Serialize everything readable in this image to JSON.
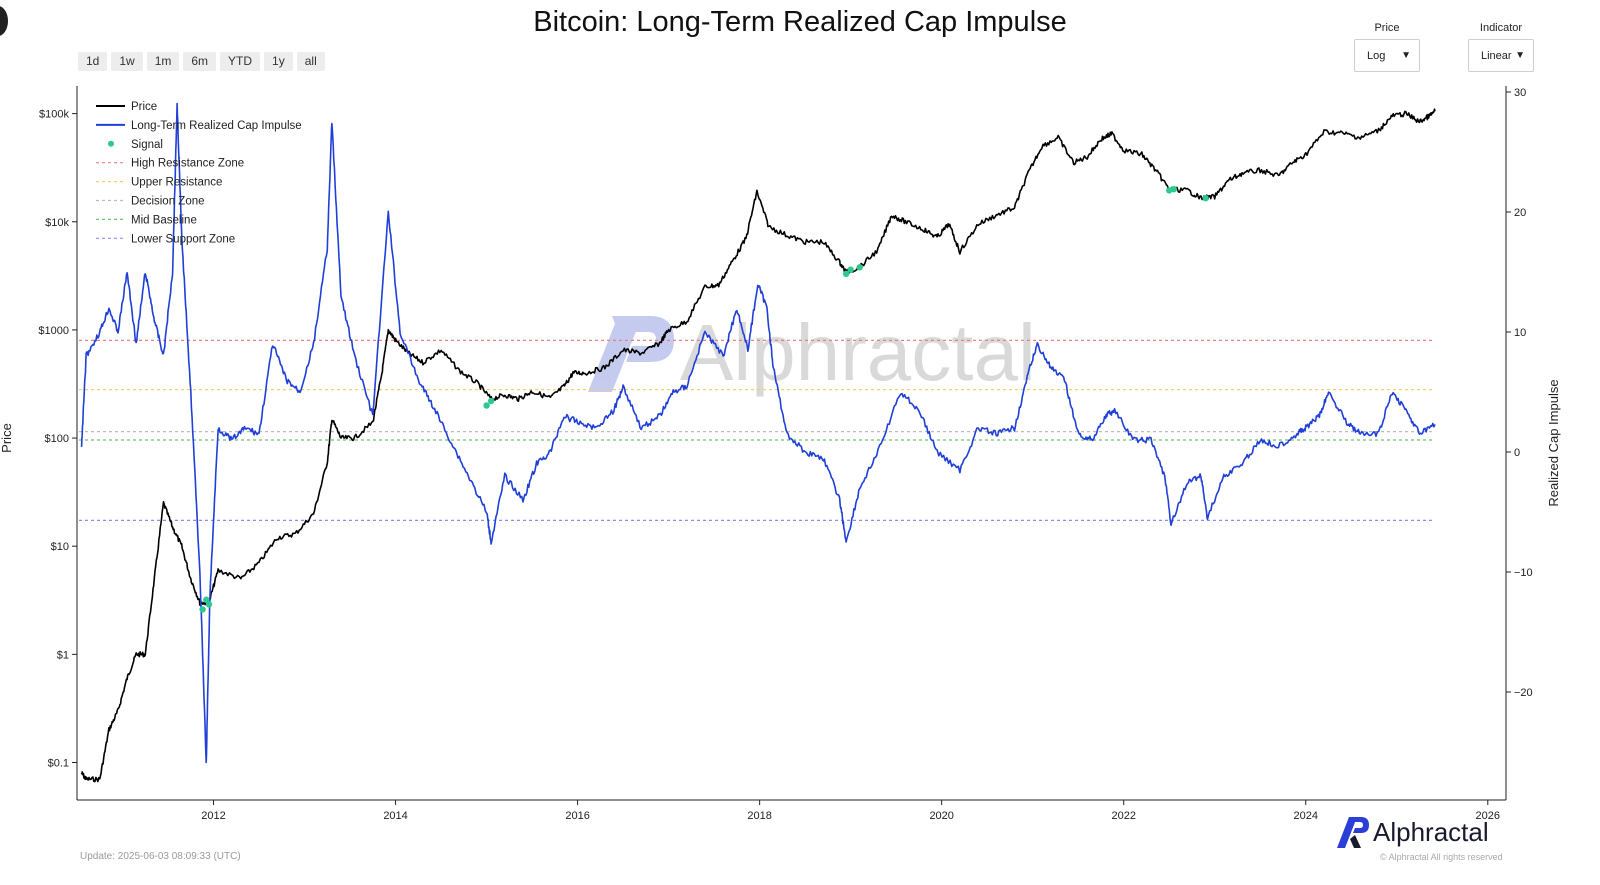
{
  "title": "Bitcoin: Long-Term Realized Cap Impulse",
  "range_buttons": [
    "1d",
    "1w",
    "1m",
    "6m",
    "YTD",
    "1y",
    "all"
  ],
  "price_control": {
    "label": "Price",
    "value": "Log"
  },
  "indicator_control": {
    "label": "Indicator",
    "value": "Linear"
  },
  "update_text": "Update: 2025-06-03 08:09:33 (UTC)",
  "brand": {
    "name": "Alphractal",
    "copyright": "© Alphractal All rights reserved"
  },
  "colors": {
    "price": "#000000",
    "impulse": "#1f3fd8",
    "signal": "#2ec98e",
    "high_resistance": "#f08080",
    "upper_resistance": "#f2d06b",
    "decision": "#bcbcbc",
    "mid_baseline": "#6cc46c",
    "lower_support": "#8e8ef0"
  },
  "chart_data": {
    "type": "line",
    "title": "Bitcoin: Long-Term Realized Cap Impulse",
    "xlabel": "",
    "ylabel_left": "Price",
    "ylabel_right": "Realized Cap Impulse",
    "x_ticks": [
      "2012",
      "2014",
      "2016",
      "2018",
      "2020",
      "2022",
      "2024",
      "2026"
    ],
    "xlim": [
      2010.5,
      2026.2
    ],
    "y_left_ticks": [
      "$0.1",
      "$1",
      "$10",
      "$100",
      "$1000",
      "$10k",
      "$100k"
    ],
    "y_left_scale": "log",
    "y_left_range": [
      0.045,
      180000
    ],
    "y_right_ticks": [
      "−20",
      "−10",
      "0",
      "10",
      "20",
      "30"
    ],
    "y_right_range": [
      -29,
      30.5
    ],
    "grid": false,
    "legend_position": "top-left",
    "legend": [
      "Price",
      "Long-Term Realized Cap Impulse",
      "Signal",
      "High Resistance Zone",
      "Upper Resistance",
      "Decision Zone",
      "Mid Baseline",
      "Lower Support Zone"
    ],
    "zones": [
      {
        "name": "High Resistance Zone",
        "value": 9.3
      },
      {
        "name": "Upper Resistance",
        "value": 5.2
      },
      {
        "name": "Decision Zone",
        "value": 1.7
      },
      {
        "name": "Mid Baseline",
        "value": 1.0
      },
      {
        "name": "Lower Support Zone",
        "value": -5.7
      }
    ],
    "series": [
      {
        "name": "Price",
        "axis": "left",
        "points": [
          [
            2010.55,
            0.08
          ],
          [
            2010.6,
            0.07
          ],
          [
            2010.75,
            0.07
          ],
          [
            2010.85,
            0.2
          ],
          [
            2010.95,
            0.3
          ],
          [
            2011.05,
            0.6
          ],
          [
            2011.15,
            1
          ],
          [
            2011.25,
            1
          ],
          [
            2011.35,
            5
          ],
          [
            2011.45,
            25
          ],
          [
            2011.55,
            15
          ],
          [
            2011.65,
            10
          ],
          [
            2011.75,
            5
          ],
          [
            2011.85,
            3
          ],
          [
            2011.95,
            3
          ],
          [
            2012.05,
            6
          ],
          [
            2012.3,
            5
          ],
          [
            2012.5,
            7
          ],
          [
            2012.7,
            12
          ],
          [
            2012.9,
            13
          ],
          [
            2013.1,
            20
          ],
          [
            2013.25,
            60
          ],
          [
            2013.3,
            150
          ],
          [
            2013.4,
            100
          ],
          [
            2013.55,
            100
          ],
          [
            2013.75,
            140
          ],
          [
            2013.85,
            400
          ],
          [
            2013.92,
            1000
          ],
          [
            2014.0,
            800
          ],
          [
            2014.15,
            600
          ],
          [
            2014.3,
            500
          ],
          [
            2014.5,
            650
          ],
          [
            2014.7,
            420
          ],
          [
            2014.9,
            320
          ],
          [
            2015.05,
            230
          ],
          [
            2015.2,
            250
          ],
          [
            2015.35,
            230
          ],
          [
            2015.5,
            270
          ],
          [
            2015.7,
            235
          ],
          [
            2015.85,
            300
          ],
          [
            2015.95,
            400
          ],
          [
            2016.1,
            400
          ],
          [
            2016.3,
            450
          ],
          [
            2016.5,
            650
          ],
          [
            2016.7,
            610
          ],
          [
            2016.9,
            750
          ],
          [
            2017.0,
            1000
          ],
          [
            2017.2,
            1200
          ],
          [
            2017.4,
            2500
          ],
          [
            2017.55,
            2600
          ],
          [
            2017.7,
            4300
          ],
          [
            2017.85,
            7000
          ],
          [
            2017.97,
            19000
          ],
          [
            2018.1,
            9000
          ],
          [
            2018.3,
            7500
          ],
          [
            2018.5,
            6500
          ],
          [
            2018.7,
            6500
          ],
          [
            2018.88,
            4200
          ],
          [
            2018.95,
            3400
          ],
          [
            2019.1,
            3800
          ],
          [
            2019.3,
            5500
          ],
          [
            2019.45,
            11500
          ],
          [
            2019.6,
            10000
          ],
          [
            2019.8,
            8500
          ],
          [
            2019.95,
            7200
          ],
          [
            2020.08,
            9500
          ],
          [
            2020.2,
            5300
          ],
          [
            2020.4,
            9500
          ],
          [
            2020.6,
            11500
          ],
          [
            2020.8,
            13500
          ],
          [
            2020.95,
            28000
          ],
          [
            2021.1,
            50000
          ],
          [
            2021.28,
            60000
          ],
          [
            2021.45,
            35000
          ],
          [
            2021.6,
            40000
          ],
          [
            2021.75,
            58000
          ],
          [
            2021.87,
            65000
          ],
          [
            2022.0,
            46000
          ],
          [
            2022.2,
            42000
          ],
          [
            2022.35,
            30000
          ],
          [
            2022.5,
            20000
          ],
          [
            2022.7,
            19500
          ],
          [
            2022.85,
            16500
          ],
          [
            2023.0,
            17000
          ],
          [
            2023.15,
            24000
          ],
          [
            2023.3,
            28000
          ],
          [
            2023.5,
            30000
          ],
          [
            2023.7,
            26500
          ],
          [
            2023.85,
            35000
          ],
          [
            2024.0,
            42000
          ],
          [
            2024.2,
            68000
          ],
          [
            2024.4,
            66000
          ],
          [
            2024.6,
            60000
          ],
          [
            2024.8,
            70000
          ],
          [
            2024.95,
            95000
          ],
          [
            2025.1,
            100000
          ],
          [
            2025.25,
            84000
          ],
          [
            2025.35,
            94000
          ],
          [
            2025.42,
            105000
          ]
        ]
      },
      {
        "name": "Long-Term Realized Cap Impulse",
        "axis": "right",
        "points": [
          [
            2010.55,
            0.5
          ],
          [
            2010.6,
            8
          ],
          [
            2010.75,
            10
          ],
          [
            2010.85,
            12
          ],
          [
            2010.95,
            10
          ],
          [
            2011.05,
            15
          ],
          [
            2011.15,
            9
          ],
          [
            2011.25,
            15
          ],
          [
            2011.35,
            11
          ],
          [
            2011.45,
            8
          ],
          [
            2011.55,
            15
          ],
          [
            2011.6,
            29
          ],
          [
            2011.65,
            18
          ],
          [
            2011.75,
            5
          ],
          [
            2011.85,
            -10
          ],
          [
            2011.92,
            -26
          ],
          [
            2011.96,
            -12
          ],
          [
            2012.05,
            2
          ],
          [
            2012.2,
            1
          ],
          [
            2012.35,
            2
          ],
          [
            2012.5,
            1.5
          ],
          [
            2012.65,
            9
          ],
          [
            2012.8,
            6
          ],
          [
            2012.95,
            5
          ],
          [
            2013.1,
            9
          ],
          [
            2013.25,
            17
          ],
          [
            2013.3,
            27.5
          ],
          [
            2013.4,
            13
          ],
          [
            2013.55,
            8
          ],
          [
            2013.75,
            3
          ],
          [
            2013.92,
            20
          ],
          [
            2014.05,
            10
          ],
          [
            2014.25,
            6
          ],
          [
            2014.4,
            4
          ],
          [
            2014.6,
            1
          ],
          [
            2014.8,
            -2
          ],
          [
            2015.0,
            -5
          ],
          [
            2015.05,
            -7.5
          ],
          [
            2015.2,
            -2
          ],
          [
            2015.4,
            -4
          ],
          [
            2015.55,
            -1
          ],
          [
            2015.7,
            0
          ],
          [
            2015.85,
            3
          ],
          [
            2016.0,
            2.5
          ],
          [
            2016.2,
            2
          ],
          [
            2016.4,
            3.5
          ],
          [
            2016.5,
            5.5
          ],
          [
            2016.7,
            2
          ],
          [
            2016.9,
            3
          ],
          [
            2017.05,
            5
          ],
          [
            2017.2,
            5.5
          ],
          [
            2017.4,
            10
          ],
          [
            2017.6,
            8
          ],
          [
            2017.75,
            12
          ],
          [
            2017.87,
            8.5
          ],
          [
            2017.98,
            14
          ],
          [
            2018.08,
            12
          ],
          [
            2018.15,
            7
          ],
          [
            2018.3,
            1.5
          ],
          [
            2018.5,
            0
          ],
          [
            2018.7,
            -0.5
          ],
          [
            2018.88,
            -4
          ],
          [
            2018.95,
            -7.5
          ],
          [
            2019.1,
            -3
          ],
          [
            2019.3,
            0
          ],
          [
            2019.55,
            5
          ],
          [
            2019.75,
            3.5
          ],
          [
            2019.95,
            0
          ],
          [
            2020.2,
            -1.5
          ],
          [
            2020.4,
            2
          ],
          [
            2020.6,
            1.5
          ],
          [
            2020.8,
            2
          ],
          [
            2020.95,
            6.5
          ],
          [
            2021.05,
            9
          ],
          [
            2021.2,
            7
          ],
          [
            2021.35,
            6
          ],
          [
            2021.5,
            1.5
          ],
          [
            2021.65,
            1
          ],
          [
            2021.8,
            3
          ],
          [
            2021.9,
            3.5
          ],
          [
            2022.1,
            1
          ],
          [
            2022.3,
            1
          ],
          [
            2022.45,
            -2
          ],
          [
            2022.52,
            -6
          ],
          [
            2022.7,
            -2.5
          ],
          [
            2022.85,
            -2
          ],
          [
            2022.92,
            -5.5
          ],
          [
            2023.1,
            -2
          ],
          [
            2023.3,
            -1
          ],
          [
            2023.5,
            1
          ],
          [
            2023.7,
            0.5
          ],
          [
            2023.9,
            1.5
          ],
          [
            2024.0,
            2
          ],
          [
            2024.15,
            3
          ],
          [
            2024.25,
            5
          ],
          [
            2024.45,
            2.5
          ],
          [
            2024.6,
            1.5
          ],
          [
            2024.8,
            1.5
          ],
          [
            2024.95,
            5
          ],
          [
            2025.1,
            3.5
          ],
          [
            2025.25,
            1.5
          ],
          [
            2025.42,
            2.3
          ]
        ]
      }
    ],
    "signals": [
      [
        2011.88,
        2.6
      ],
      [
        2011.92,
        3.2
      ],
      [
        2011.95,
        2.9
      ],
      [
        2015.0,
        200
      ],
      [
        2015.05,
        220
      ],
      [
        2018.95,
        3300
      ],
      [
        2019.0,
        3600
      ],
      [
        2019.1,
        3800
      ],
      [
        2022.5,
        19500
      ],
      [
        2022.55,
        20000
      ],
      [
        2022.9,
        16500
      ]
    ]
  }
}
